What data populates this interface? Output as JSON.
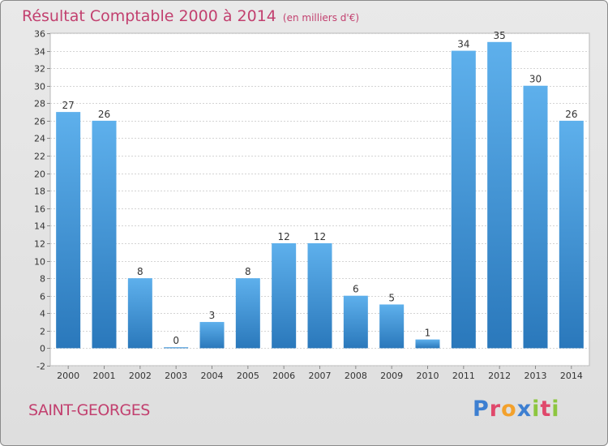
{
  "header": {
    "title": "Résultat Comptable 2000 à 2014",
    "subtitle": "(en milliers d'€)"
  },
  "footer": {
    "commune": "SAINT-GEORGES",
    "logo_letters": [
      {
        "ch": "P",
        "color": "#3d7fd1"
      },
      {
        "ch": "r",
        "color": "#e0486b"
      },
      {
        "ch": "o",
        "color": "#f3a12c"
      },
      {
        "ch": "x",
        "color": "#3d7fd1"
      },
      {
        "ch": "i",
        "color": "#8dc63f"
      },
      {
        "ch": "t",
        "color": "#e0486b"
      },
      {
        "ch": "i",
        "color": "#8dc63f"
      }
    ]
  },
  "colors": {
    "bar_top": "#5eb0ec",
    "bar_bottom": "#2a78bb",
    "accent": "#c2406f"
  },
  "chart_data": {
    "type": "bar",
    "categories": [
      "2000",
      "2001",
      "2002",
      "2003",
      "2004",
      "2005",
      "2006",
      "2007",
      "2008",
      "2009",
      "2010",
      "2011",
      "2012",
      "2013",
      "2014"
    ],
    "values": [
      27,
      26,
      8,
      0,
      3,
      8,
      12,
      12,
      6,
      5,
      1,
      34,
      35,
      30,
      26
    ],
    "ylim": [
      -2,
      36
    ],
    "yticks": [
      -2,
      0,
      2,
      4,
      6,
      8,
      10,
      12,
      14,
      16,
      18,
      20,
      22,
      24,
      26,
      28,
      30,
      32,
      34,
      36
    ],
    "grid": true,
    "data_labels": true
  }
}
